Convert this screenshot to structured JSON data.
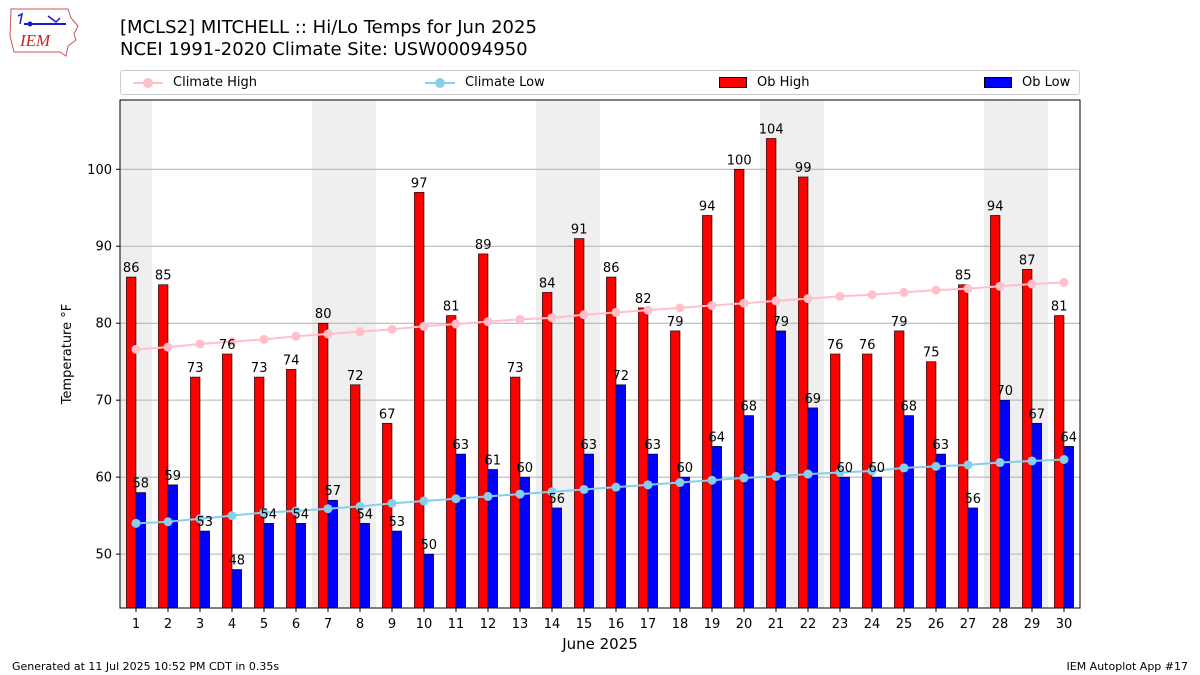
{
  "chart_data": {
    "type": "bar",
    "title": "[MCLS2] MITCHELL :: Hi/Lo Temps for Jun 2025",
    "subtitle": "NCEI 1991-2020 Climate Site: USW00094950",
    "xlabel": "June 2025",
    "ylabel": "Temperature °F",
    "ylim": [
      43,
      109
    ],
    "yticks": [
      50,
      60,
      70,
      80,
      90,
      100
    ],
    "grid": "y",
    "legend_placement": "top",
    "weekend_shading": [
      [
        1,
        1
      ],
      [
        7,
        8
      ],
      [
        14,
        15
      ],
      [
        21,
        22
      ],
      [
        28,
        29
      ]
    ],
    "categories": [
      "1",
      "2",
      "3",
      "4",
      "5",
      "6",
      "7",
      "8",
      "9",
      "10",
      "11",
      "12",
      "13",
      "14",
      "15",
      "16",
      "17",
      "18",
      "19",
      "20",
      "21",
      "22",
      "23",
      "24",
      "25",
      "26",
      "27",
      "28",
      "29",
      "30"
    ],
    "series": [
      {
        "name": "Ob High",
        "kind": "bar",
        "color": "#ff0000",
        "values": [
          86,
          85,
          73,
          76,
          73,
          74,
          80,
          72,
          67,
          97,
          81,
          89,
          73,
          84,
          91,
          86,
          82,
          79,
          94,
          100,
          104,
          99,
          76,
          76,
          79,
          75,
          85,
          94,
          87,
          81
        ]
      },
      {
        "name": "Ob Low",
        "kind": "bar",
        "color": "#0000ff",
        "values": [
          58,
          59,
          53,
          48,
          54,
          54,
          57,
          54,
          53,
          50,
          63,
          61,
          60,
          56,
          63,
          72,
          63,
          60,
          64,
          68,
          79,
          69,
          60,
          60,
          68,
          63,
          56,
          70,
          67,
          64
        ]
      },
      {
        "name": "Climate High",
        "kind": "line",
        "color": "#ffc0cb",
        "values": [
          76.6,
          76.9,
          77.3,
          77.6,
          77.9,
          78.3,
          78.6,
          78.9,
          79.2,
          79.6,
          79.9,
          80.2,
          80.5,
          80.7,
          81.1,
          81.4,
          81.7,
          82.0,
          82.3,
          82.6,
          82.9,
          83.2,
          83.5,
          83.7,
          84.0,
          84.3,
          84.5,
          84.8,
          85.1,
          85.3
        ]
      },
      {
        "name": "Climate Low",
        "kind": "line",
        "color": "#87ceeb",
        "values": [
          54.0,
          54.2,
          54.6,
          55.0,
          55.4,
          55.6,
          55.9,
          56.2,
          56.6,
          56.9,
          57.2,
          57.5,
          57.8,
          58.1,
          58.4,
          58.7,
          59.0,
          59.3,
          59.6,
          59.9,
          60.1,
          60.4,
          60.6,
          60.8,
          61.2,
          61.4,
          61.6,
          61.9,
          62.1,
          62.3
        ]
      }
    ]
  },
  "legend": {
    "climate_high": "Climate High",
    "climate_low": "Climate Low",
    "ob_high": "Ob High",
    "ob_low": "Ob Low"
  },
  "logo": {
    "text": "IEM",
    "color": "#cc2222"
  },
  "footer": {
    "generated": "Generated at 11 Jul 2025 10:52 PM CDT in 0.35s",
    "app": "IEM Autoplot App #17"
  }
}
